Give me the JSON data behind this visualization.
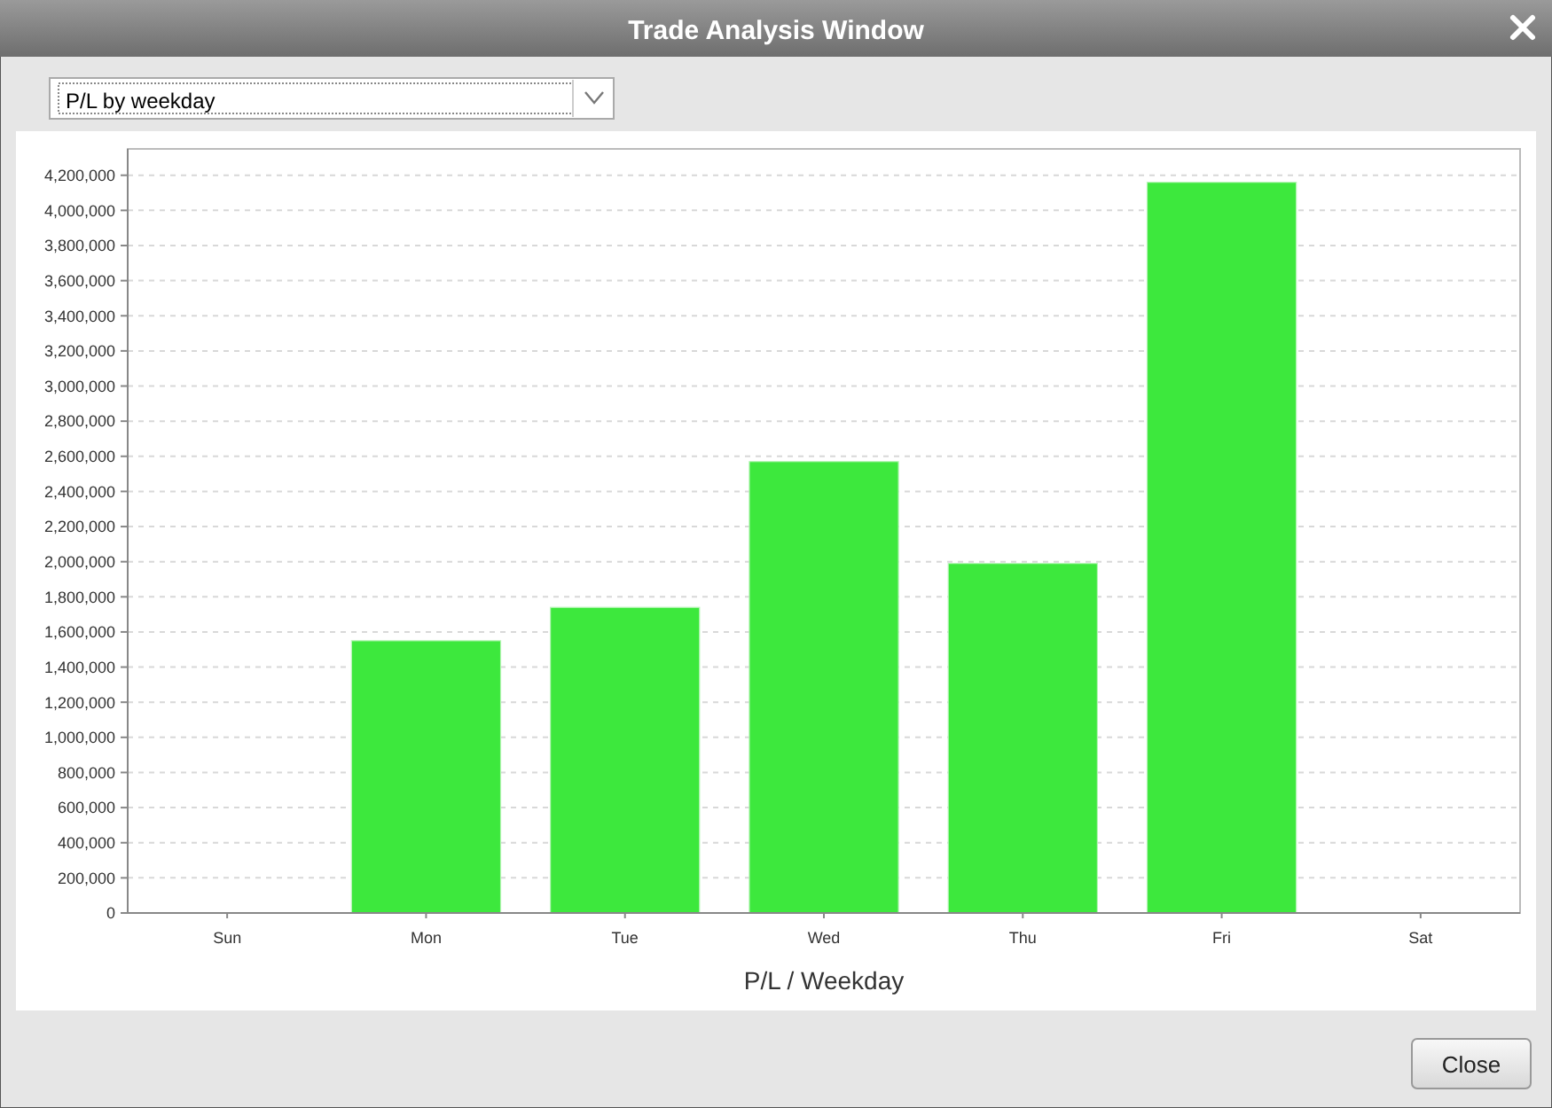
{
  "chart_data": {
    "type": "bar",
    "title": "Trade Analysis Window",
    "subtitle": "P/L by weekday",
    "xlabel": "P/L / Weekday",
    "categories": [
      "Sun",
      "Mon",
      "Tue",
      "Wed",
      "Thu",
      "Fri",
      "Sat"
    ],
    "values": [
      0,
      1550000,
      1740000,
      2570000,
      1990000,
      4160000,
      0
    ],
    "color": "#3de83d",
    "ylim": [
      0,
      4350000
    ],
    "yticks": [
      {
        "value": 0,
        "label": "0"
      },
      {
        "value": 200000,
        "label": "200,000"
      },
      {
        "value": 400000,
        "label": "400,000"
      },
      {
        "value": 600000,
        "label": "600,000"
      },
      {
        "value": 800000,
        "label": "800,000"
      },
      {
        "value": 1000000,
        "label": "1,000,000"
      },
      {
        "value": 1200000,
        "label": "1,200,000"
      },
      {
        "value": 1400000,
        "label": "1,400,000"
      },
      {
        "value": 1600000,
        "label": "1,600,000"
      },
      {
        "value": 1800000,
        "label": "1,800,000"
      },
      {
        "value": 2000000,
        "label": "2,000,000"
      },
      {
        "value": 2200000,
        "label": "2,200,000"
      },
      {
        "value": 2400000,
        "label": "2,400,000"
      },
      {
        "value": 2600000,
        "label": "2,600,000"
      },
      {
        "value": 2800000,
        "label": "2,800,000"
      },
      {
        "value": 3000000,
        "label": "3,000,000"
      },
      {
        "value": 3200000,
        "label": "3,200,000"
      },
      {
        "value": 3400000,
        "label": "3,400,000"
      },
      {
        "value": 3600000,
        "label": "3,600,000"
      },
      {
        "value": 3800000,
        "label": "3,800,000"
      },
      {
        "value": 4000000,
        "label": "4,000,000"
      },
      {
        "value": 4200000,
        "label": "4,200,000"
      }
    ],
    "grid": "y",
    "annotations": [
      "Close"
    ]
  }
}
